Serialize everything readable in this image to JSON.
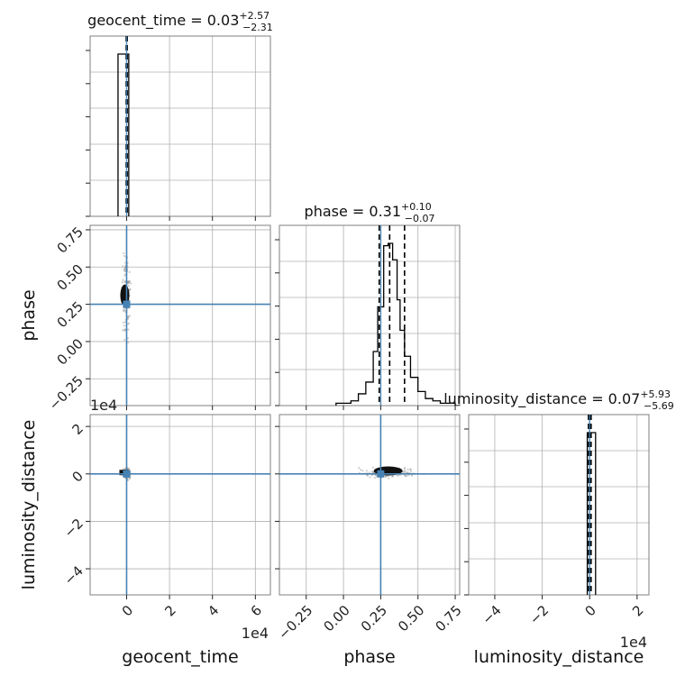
{
  "chart_data": {
    "type": "corner",
    "parameters": [
      "geocent_time",
      "phase",
      "luminosity_distance"
    ],
    "colors": {
      "truth": "#4682b4",
      "hist": "#000000",
      "grid": "#b0b0b0",
      "samples": "#888888"
    },
    "grid": true,
    "offset_text": {
      "geocent_time": "1e4",
      "luminosity_distance": "1e4"
    },
    "titles": [
      {
        "param": "geocent_time",
        "median": "0.03",
        "plus": "+2.57",
        "minus": "−2.31"
      },
      {
        "param": "phase",
        "median": "0.31",
        "plus": "+0.10",
        "minus": "−0.07"
      },
      {
        "param": "luminosity_distance",
        "median": "0.07",
        "plus": "+5.93",
        "minus": "−5.69"
      }
    ],
    "axes": {
      "geocent_time": {
        "range": [
          -1.7,
          6.7
        ],
        "ticks": [
          0,
          2,
          4,
          6
        ],
        "tick_labels": [
          "0",
          "2",
          "4",
          "6"
        ],
        "grid": [
          0,
          2,
          4,
          6
        ]
      },
      "phase": {
        "range": [
          -0.43,
          0.78
        ],
        "ticks": [
          -0.25,
          0,
          0.25,
          0.5,
          0.75
        ],
        "tick_labels": [
          "−0.25",
          "0.00",
          "0.25",
          "0.50",
          "0.75"
        ]
      },
      "luminosity_distance": {
        "range": [
          -5.1,
          2.5
        ],
        "ticks": [
          -4,
          -2,
          0,
          2
        ],
        "tick_labels": [
          "−4",
          "−2",
          "0",
          "2"
        ]
      }
    },
    "truths": {
      "geocent_time": 0.0,
      "phase": 0.25,
      "luminosity_distance": 0.0
    },
    "diagonal": [
      {
        "param": "geocent_time",
        "bins": [
          -0.4,
          -0.02,
          0.1
        ],
        "counts": [
          1.0,
          1.0
        ],
        "quantiles": [
          -0.02,
          0.003,
          0.03
        ]
      },
      {
        "param": "phase",
        "bins": [
          -0.05,
          0.0,
          0.05,
          0.1,
          0.15,
          0.2,
          0.23,
          0.27,
          0.3,
          0.33,
          0.36,
          0.38,
          0.41,
          0.45,
          0.5,
          0.55,
          0.6,
          0.65,
          0.7,
          0.75,
          0.78
        ],
        "counts": [
          0.01,
          0.01,
          0.02,
          0.05,
          0.1,
          0.23,
          0.42,
          0.68,
          0.69,
          0.62,
          0.45,
          0.32,
          0.21,
          0.12,
          0.06,
          0.03,
          0.02,
          0.01,
          0.01,
          0.0
        ],
        "quantiles": [
          0.24,
          0.31,
          0.41
        ]
      },
      {
        "param": "luminosity_distance",
        "bins": [
          -0.1,
          0.0,
          0.25
        ],
        "counts": [
          0.9,
          0.9
        ],
        "quantiles": [
          -0.05,
          0.007,
          0.06
        ]
      }
    ],
    "pairs": [
      {
        "x": "geocent_time",
        "y": "phase",
        "core": [
          0.0,
          0.31
        ]
      },
      {
        "x": "geocent_time",
        "y": "luminosity_distance",
        "core": [
          0.0,
          0.02
        ]
      },
      {
        "x": "phase",
        "y": "luminosity_distance",
        "core": [
          0.3,
          0.05
        ]
      }
    ],
    "xlabels": [
      "geocent_time",
      "phase",
      "luminosity_distance"
    ],
    "ylabels": [
      "phase",
      "luminosity_distance"
    ]
  }
}
